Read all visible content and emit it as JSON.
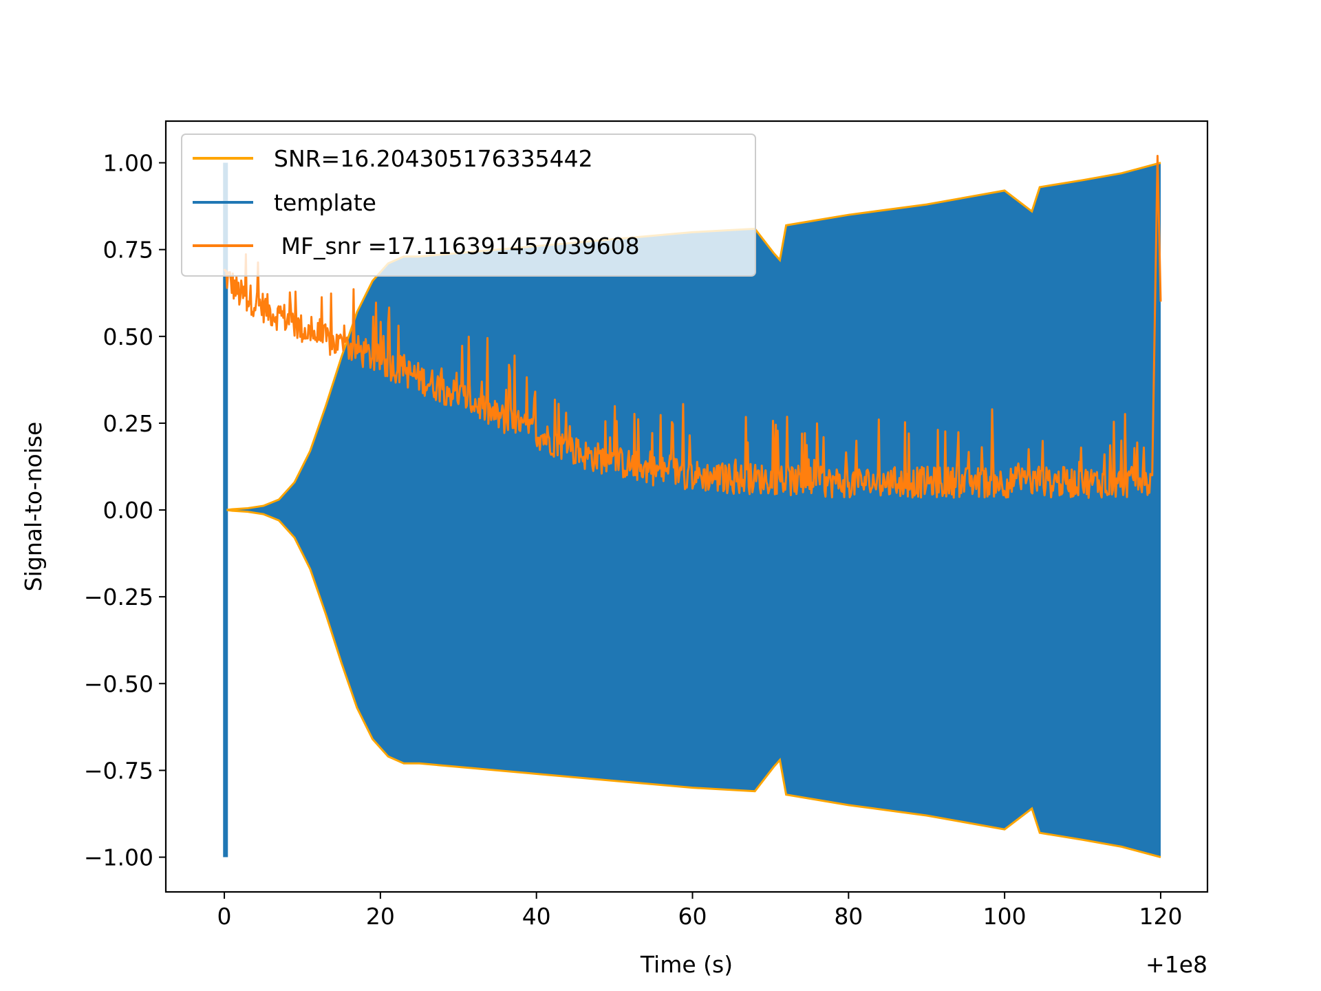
{
  "chart_data": {
    "type": "line",
    "title": "",
    "xlabel": "Time (s)",
    "ylabel": "Signal-to-noise",
    "x_offset_label": "+1e8",
    "xlim": [
      -7.5,
      126
    ],
    "ylim": [
      -1.1,
      1.12
    ],
    "x_ticks": [
      0,
      20,
      40,
      60,
      80,
      100,
      120
    ],
    "x_tick_labels": [
      "0",
      "20",
      "40",
      "60",
      "80",
      "100",
      "120"
    ],
    "y_ticks": [
      1.0,
      0.75,
      0.5,
      0.25,
      0.0,
      -0.25,
      -0.5,
      -0.75,
      -1.0
    ],
    "y_tick_labels": [
      "1.00",
      "0.75",
      "0.50",
      "0.25",
      "0.00",
      "−0.25",
      "−0.50",
      "−0.75",
      "−1.00"
    ],
    "legend_position": "upper-left",
    "grid": false,
    "series": [
      {
        "name": "SNR=16.204305176335442",
        "color": "#ffa500",
        "kind": "envelope",
        "x": [
          0.3,
          1,
          3,
          5,
          7,
          9,
          11,
          13,
          15,
          17,
          19,
          21,
          23,
          25,
          30,
          40,
          50,
          60,
          68,
          70.4,
          71.2,
          72,
          80,
          90,
          100,
          103.5,
          104.5,
          110,
          115,
          120
        ],
        "upper": [
          0.0,
          0.002,
          0.005,
          0.012,
          0.03,
          0.08,
          0.17,
          0.3,
          0.44,
          0.57,
          0.66,
          0.71,
          0.73,
          0.73,
          0.74,
          0.76,
          0.78,
          0.8,
          0.81,
          0.74,
          0.72,
          0.82,
          0.85,
          0.88,
          0.92,
          0.86,
          0.93,
          0.95,
          0.97,
          1.0
        ],
        "lower": [
          0.0,
          -0.002,
          -0.005,
          -0.012,
          -0.03,
          -0.08,
          -0.17,
          -0.3,
          -0.44,
          -0.57,
          -0.66,
          -0.71,
          -0.73,
          -0.73,
          -0.74,
          -0.76,
          -0.78,
          -0.8,
          -0.81,
          -0.74,
          -0.72,
          -0.82,
          -0.85,
          -0.88,
          -0.92,
          -0.86,
          -0.93,
          -0.95,
          -0.97,
          -1.0
        ]
      },
      {
        "name": "template",
        "color": "#1f77b4",
        "kind": "oscillation",
        "x": [
          0.3,
          1,
          3,
          5,
          7,
          9,
          11,
          13,
          15,
          17,
          19,
          21,
          23,
          25,
          30,
          40,
          50,
          60,
          68,
          70.4,
          71.2,
          72,
          80,
          90,
          100,
          103.5,
          104.5,
          110,
          115,
          120
        ],
        "upper": [
          0.0,
          0.002,
          0.005,
          0.012,
          0.03,
          0.08,
          0.17,
          0.3,
          0.44,
          0.57,
          0.66,
          0.71,
          0.73,
          0.73,
          0.74,
          0.76,
          0.78,
          0.8,
          0.81,
          0.74,
          0.72,
          0.82,
          0.85,
          0.88,
          0.92,
          0.86,
          0.93,
          0.95,
          0.97,
          1.0
        ],
        "lower": [
          0.0,
          -0.002,
          -0.005,
          -0.012,
          -0.03,
          -0.08,
          -0.17,
          -0.3,
          -0.44,
          -0.57,
          -0.66,
          -0.71,
          -0.73,
          -0.73,
          -0.74,
          -0.76,
          -0.78,
          -0.8,
          -0.81,
          -0.74,
          -0.72,
          -0.82,
          -0.85,
          -0.88,
          -0.92,
          -0.86,
          -0.93,
          -0.95,
          -0.97,
          -1.0
        ],
        "spike_x": 0.15,
        "spike_range": [
          -1.0,
          1.0
        ]
      },
      {
        "name": " MF_snr =17.116391457039608",
        "color": "#ff7f0e",
        "kind": "noisy-line",
        "x": [
          0,
          2,
          4,
          6,
          8,
          10,
          12,
          14,
          16,
          18,
          20,
          22,
          24,
          26,
          28,
          30,
          32,
          34,
          36,
          38,
          40,
          42,
          44,
          46,
          48,
          50,
          52,
          54,
          56,
          58,
          60,
          65,
          70,
          75,
          80,
          85,
          90,
          95,
          100,
          105,
          110,
          115,
          119,
          119.6,
          120
        ],
        "y": [
          0.68,
          0.62,
          0.6,
          0.57,
          0.55,
          0.52,
          0.5,
          0.48,
          0.47,
          0.45,
          0.43,
          0.41,
          0.39,
          0.37,
          0.35,
          0.33,
          0.31,
          0.28,
          0.26,
          0.24,
          0.22,
          0.2,
          0.18,
          0.16,
          0.15,
          0.14,
          0.13,
          0.12,
          0.11,
          0.11,
          0.1,
          0.09,
          0.09,
          0.08,
          0.08,
          0.08,
          0.08,
          0.08,
          0.08,
          0.08,
          0.08,
          0.08,
          0.08,
          1.02,
          0.6
        ]
      }
    ]
  }
}
